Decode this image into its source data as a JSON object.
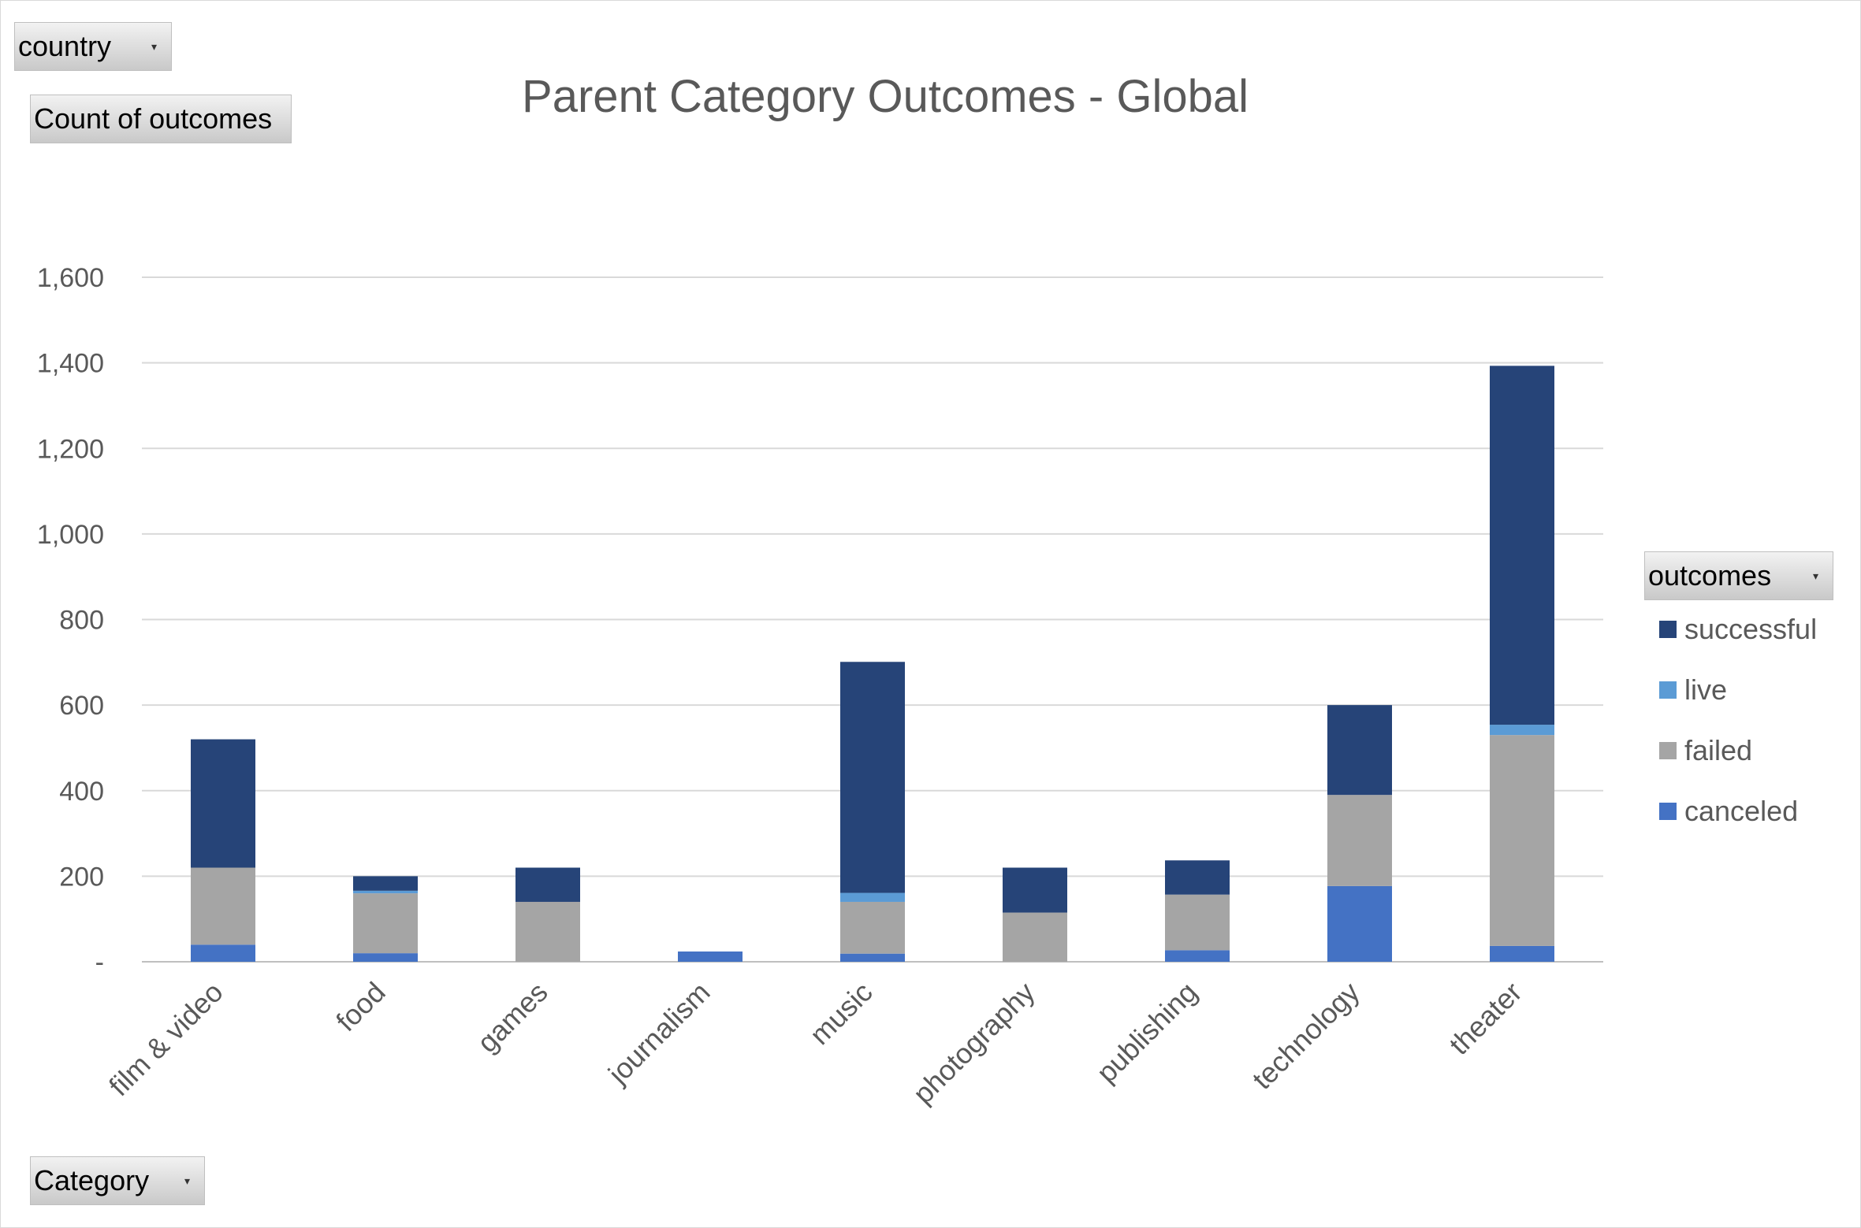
{
  "filters": {
    "country_label": "country",
    "values_label": "Count of outcomes",
    "legend_field_label": "outcomes",
    "axis_field_label": "Category",
    "dropdown_icon": "dropdown-arrow-icon"
  },
  "chart_data": {
    "type": "bar",
    "stacked": true,
    "title": "Parent Category Outcomes - Global",
    "xlabel": "",
    "ylabel": "",
    "categories": [
      "film & video",
      "food",
      "games",
      "journalism",
      "music",
      "photography",
      "publishing",
      "technology",
      "theater"
    ],
    "series": [
      {
        "name": "canceled",
        "color": "#4472c4",
        "values": [
          40,
          20,
          0,
          24,
          19,
          0,
          27,
          177,
          37
        ]
      },
      {
        "name": "failed",
        "color": "#a5a5a5",
        "values": [
          180,
          140,
          140,
          0,
          121,
          115,
          130,
          213,
          493
        ]
      },
      {
        "name": "live",
        "color": "#5b9bd5",
        "values": [
          0,
          6,
          0,
          0,
          21,
          0,
          0,
          0,
          24
        ]
      },
      {
        "name": "successful",
        "color": "#264478",
        "values": [
          300,
          34,
          80,
          0,
          540,
          105,
          80,
          210,
          839
        ]
      }
    ],
    "legend_order": [
      "successful",
      "live",
      "failed",
      "canceled"
    ],
    "ylim": [
      0,
      1600
    ],
    "yticks": [
      0,
      200,
      400,
      600,
      800,
      1000,
      1200,
      1400,
      1600
    ],
    "ytick_labels": [
      "-",
      "200",
      "400",
      "600",
      "800",
      "1,000",
      "1,200",
      "1,400",
      "1,600"
    ],
    "grid": true,
    "legend_position": "right"
  }
}
